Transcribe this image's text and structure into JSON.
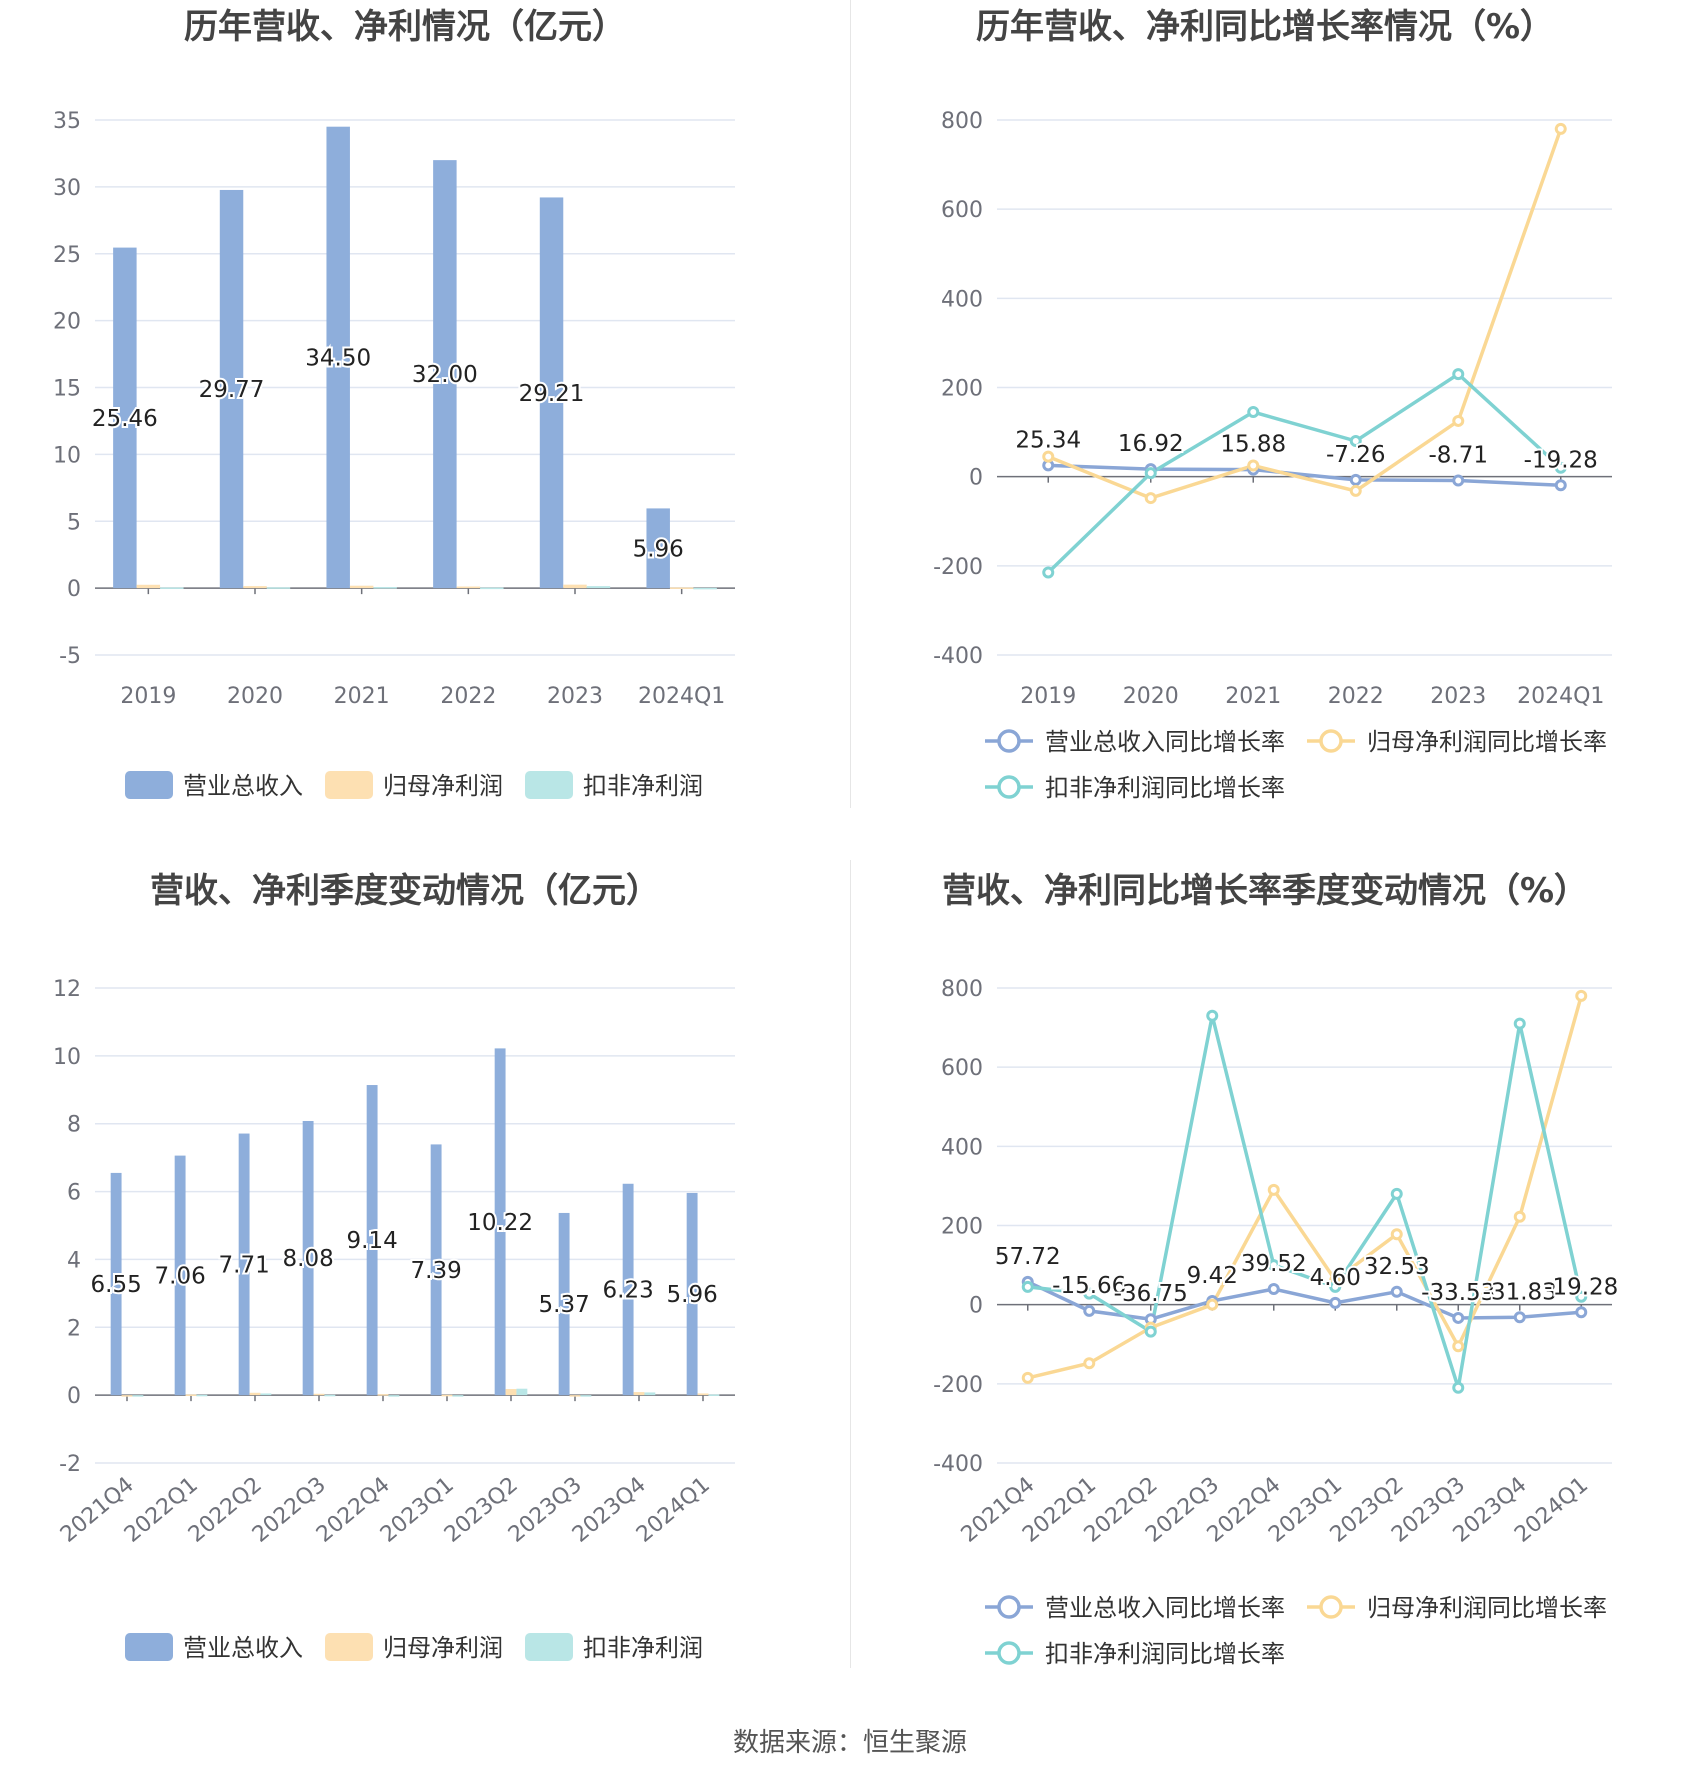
{
  "source_label": "数据来源：",
  "source_name": "恒生聚源",
  "colors": {
    "revenue": "#8eaedb",
    "parent_profit": "#fde0b2",
    "deducted_profit": "#b9e6e6",
    "revenue_line": "#8aa6d6",
    "parent_line": "#fad894",
    "deducted_line": "#7fd2d2"
  },
  "chart_data": [
    {
      "id": "annual-amount",
      "type": "bar",
      "title": "历年营收、净利情况（亿元）",
      "categories": [
        "2019",
        "2020",
        "2021",
        "2022",
        "2023",
        "2024Q1"
      ],
      "series": [
        {
          "name": "营业总收入",
          "values": [
            25.46,
            29.77,
            34.5,
            32.0,
            29.21,
            5.96
          ],
          "labels": [
            "25.46",
            "29.77",
            "34.50",
            "32.00",
            "29.21",
            "5.96"
          ]
        },
        {
          "name": "归母净利润",
          "values": [
            0.25,
            0.15,
            0.18,
            0.12,
            0.26,
            0.05
          ]
        },
        {
          "name": "扣非净利润",
          "values": [
            0.05,
            0.06,
            0.08,
            0.04,
            0.15,
            0.02
          ]
        }
      ],
      "ylim": [
        -5,
        35
      ],
      "yticks": [
        -5,
        0,
        5,
        10,
        15,
        20,
        25,
        30,
        35
      ],
      "grid": true,
      "legend": "bottom"
    },
    {
      "id": "annual-growth",
      "type": "line",
      "title": "历年营收、净利同比增长率情况（%）",
      "categories": [
        "2019",
        "2020",
        "2021",
        "2022",
        "2023",
        "2024Q1"
      ],
      "series": [
        {
          "name": "营业总收入同比增长率",
          "values": [
            25.34,
            16.92,
            15.88,
            -7.26,
            -8.71,
            -19.28
          ],
          "labels": [
            "25.34",
            "16.92",
            "15.88",
            "-7.26",
            "-8.71",
            "-19.28"
          ]
        },
        {
          "name": "归母净利润同比增长率",
          "values": [
            45,
            -48,
            25,
            -32,
            125,
            780
          ]
        },
        {
          "name": "扣非净利润同比增长率",
          "values": [
            -215,
            8,
            145,
            80,
            230,
            20
          ]
        }
      ],
      "ylim": [
        -400,
        800
      ],
      "yticks": [
        -400,
        -200,
        0,
        200,
        400,
        600,
        800
      ],
      "grid": true,
      "legend": "bottom"
    },
    {
      "id": "quarterly-amount",
      "type": "bar",
      "title": "营收、净利季度变动情况（亿元）",
      "categories": [
        "2021Q4",
        "2022Q1",
        "2022Q2",
        "2022Q3",
        "2022Q4",
        "2023Q1",
        "2023Q2",
        "2023Q3",
        "2023Q4",
        "2024Q1"
      ],
      "series": [
        {
          "name": "营业总收入",
          "values": [
            6.55,
            7.06,
            7.71,
            8.08,
            9.14,
            7.39,
            10.22,
            5.37,
            6.23,
            5.96
          ],
          "labels": [
            "6.55",
            "7.06",
            "7.71",
            "8.08",
            "9.14",
            "7.39",
            "10.22",
            "5.37",
            "6.23",
            "5.96"
          ]
        },
        {
          "name": "归母净利润",
          "values": [
            -0.02,
            0.02,
            0.07,
            0.04,
            0.03,
            0.01,
            0.18,
            -0.02,
            0.09,
            0.05
          ]
        },
        {
          "name": "扣非净利润",
          "values": [
            -0.04,
            0.01,
            0.05,
            0.01,
            0.0,
            -0.01,
            0.19,
            -0.03,
            0.08,
            0.02
          ]
        }
      ],
      "ylim": [
        -2,
        12
      ],
      "yticks": [
        -2,
        0,
        2,
        4,
        6,
        8,
        10,
        12
      ],
      "grid": true,
      "legend": "bottom"
    },
    {
      "id": "quarterly-growth",
      "type": "line",
      "title": "营收、净利同比增长率季度变动情况（%）",
      "categories": [
        "2021Q4",
        "2022Q1",
        "2022Q2",
        "2022Q3",
        "2022Q4",
        "2023Q1",
        "2023Q2",
        "2023Q3",
        "2023Q4",
        "2024Q1"
      ],
      "series": [
        {
          "name": "营业总收入同比增长率",
          "values": [
            57.72,
            -15.66,
            -36.75,
            9.42,
            39.52,
            4.6,
            32.53,
            -33.53,
            -31.83,
            -19.28
          ],
          "labels": [
            "57.72",
            "-15.66",
            "-36.75",
            "9.42",
            "39.52",
            "4.60",
            "32.53",
            "-33.53",
            "-31.83",
            "-19.28"
          ]
        },
        {
          "name": "归母净利润同比增长率",
          "values": [
            -185,
            -148,
            -58,
            0,
            290,
            62,
            178,
            -105,
            222,
            780
          ]
        },
        {
          "name": "扣非净利润同比增长率",
          "values": [
            45,
            28,
            -68,
            730,
            100,
            45,
            280,
            -210,
            710,
            20
          ]
        }
      ],
      "ylim": [
        -400,
        800
      ],
      "yticks": [
        -400,
        -200,
        0,
        200,
        400,
        600,
        800
      ],
      "grid": true,
      "legend": "bottom"
    }
  ]
}
